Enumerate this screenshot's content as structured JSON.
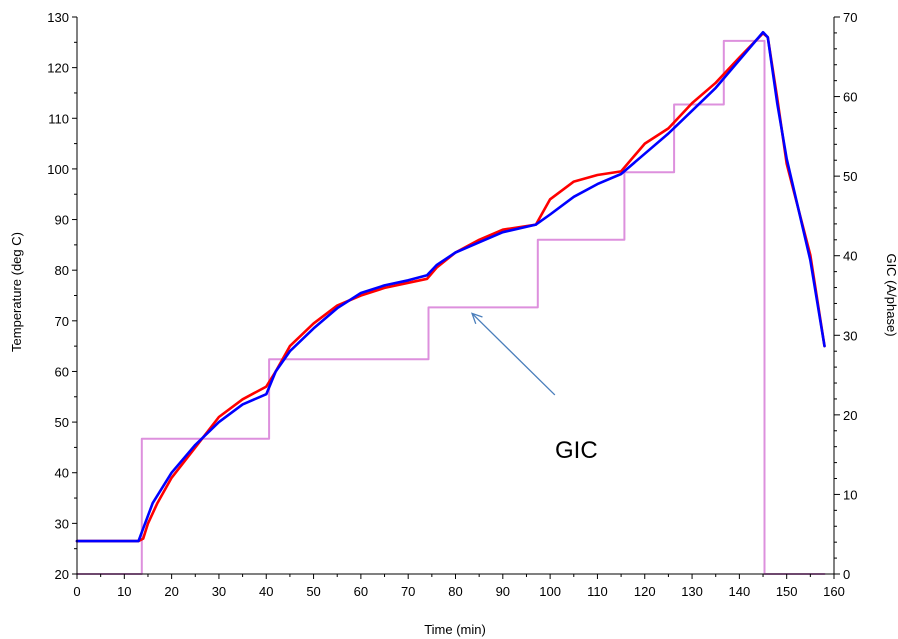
{
  "chart_data": {
    "type": "line",
    "xlabel": "Time (min)",
    "ylabel": "Temperature (deg C)",
    "y2label": "GIC (A/phase)",
    "xlim": [
      0,
      160
    ],
    "ylim": [
      20,
      130
    ],
    "y2lim": [
      0,
      70
    ],
    "x_ticks": [
      0,
      10,
      20,
      30,
      40,
      50,
      60,
      70,
      80,
      90,
      100,
      110,
      120,
      130,
      140,
      150,
      160
    ],
    "y_ticks": [
      20,
      30,
      40,
      50,
      60,
      70,
      80,
      90,
      100,
      110,
      120,
      130
    ],
    "y2_ticks": [
      0,
      10,
      20,
      30,
      40,
      50,
      60,
      70
    ],
    "grid": false,
    "series": [
      {
        "axis": "left",
        "color": "#ff0000",
        "x": [
          0,
          13,
          14,
          15,
          17,
          20,
          25,
          30,
          35,
          40,
          42,
          45,
          50,
          55,
          60,
          65,
          70,
          74,
          76,
          80,
          85,
          90,
          97,
          100,
          105,
          110,
          115,
          120,
          125,
          130,
          135,
          140,
          145,
          146,
          148,
          150,
          155,
          158
        ],
        "values": [
          26.5,
          26.5,
          27,
          30,
          34,
          39,
          45,
          51,
          54.5,
          57,
          60,
          65,
          69.5,
          73,
          75,
          76.5,
          77.5,
          78.3,
          80.5,
          83.5,
          86,
          88,
          89,
          94,
          97.5,
          98.8,
          99.5,
          105,
          108,
          113,
          117,
          122,
          126.8,
          126,
          114,
          101,
          83,
          65
        ]
      },
      {
        "axis": "left",
        "color": "#0000ff",
        "x": [
          0,
          13,
          14,
          16,
          20,
          25,
          30,
          35,
          40,
          42,
          45,
          50,
          55,
          60,
          65,
          70,
          74,
          76,
          80,
          85,
          90,
          97,
          100,
          105,
          110,
          115,
          120,
          125,
          130,
          135,
          140,
          145,
          146,
          148,
          150,
          155,
          158
        ],
        "values": [
          26.5,
          26.5,
          29,
          34,
          40,
          45.5,
          50,
          53.5,
          55.5,
          60,
          64,
          68.5,
          72.5,
          75.5,
          77,
          78,
          79,
          81,
          83.5,
          85.5,
          87.5,
          89,
          91,
          94.5,
          97,
          99,
          103,
          107,
          111.5,
          116,
          121.5,
          127,
          126,
          113,
          102,
          82,
          65
        ]
      },
      {
        "name": "GIC",
        "axis": "right",
        "color": "#dd90dd",
        "step": true,
        "x": [
          0,
          13.7,
          13.7,
          40.6,
          40.6,
          74.3,
          74.3,
          97.4,
          97.4,
          115.7,
          115.7,
          126.2,
          126.2,
          136.7,
          136.7,
          145.3,
          145.3,
          158
        ],
        "values": [
          0,
          0,
          17,
          17,
          27,
          27,
          33.5,
          33.5,
          42,
          42,
          50.5,
          50.5,
          59,
          59,
          67,
          67,
          0,
          0
        ]
      }
    ],
    "annotations": [
      {
        "text": "GIC",
        "points_to": [
          83.5,
          33.5
        ],
        "from": [
          101,
          22.5
        ]
      }
    ]
  }
}
